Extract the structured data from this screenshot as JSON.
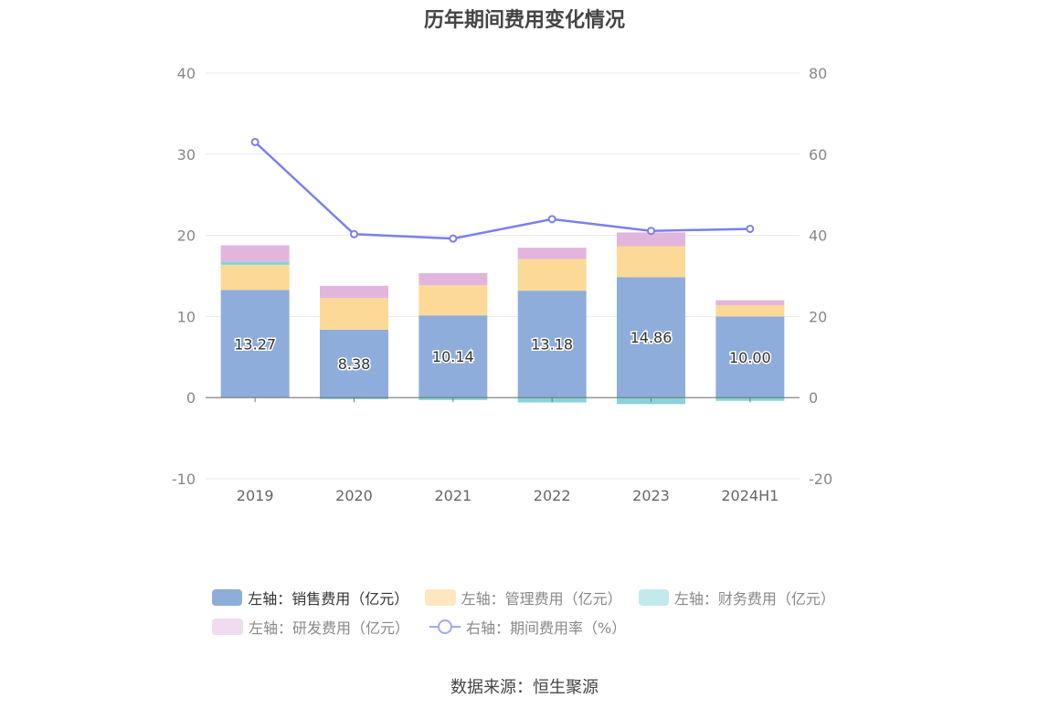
{
  "title": "历年期间费用变化情况",
  "source": "数据来源：恒生聚源",
  "legend": [
    {
      "label": "左轴：销售费用（亿元）",
      "color": "#8eaddb",
      "kind": "bar"
    },
    {
      "label": "左轴：管理费用（亿元）",
      "color": "#fdd998",
      "kind": "bar"
    },
    {
      "label": "左轴：财务费用（亿元）",
      "color": "#86d3da",
      "kind": "bar"
    },
    {
      "label": "左轴：研发费用（亿元）",
      "color": "#e2b6dc",
      "kind": "bar"
    },
    {
      "label": "右轴：期间费用率（%）",
      "color": "#7b7ff0",
      "kind": "line"
    }
  ],
  "chart_data": {
    "type": "bar",
    "title": "历年期间费用变化情况",
    "categories": [
      "2019",
      "2020",
      "2021",
      "2022",
      "2023",
      "2024H1"
    ],
    "left_axis": {
      "ylim": [
        -10,
        40
      ],
      "ticks": [
        -10,
        0,
        10,
        20,
        30,
        40
      ]
    },
    "right_axis": {
      "ylim": [
        -20,
        80
      ],
      "ticks": [
        -20,
        0,
        20,
        40,
        60,
        80
      ]
    },
    "series": [
      {
        "name": "左轴：销售费用（亿元）",
        "axis": "left",
        "stack": true,
        "color": "#8eaddb",
        "values": [
          13.27,
          8.38,
          10.14,
          13.18,
          14.86,
          10.0
        ],
        "labels": [
          "13.27",
          "8.38",
          "10.14",
          "13.18",
          "14.86",
          "10.00"
        ]
      },
      {
        "name": "左轴：管理费用（亿元）",
        "axis": "left",
        "stack": true,
        "color": "#fdd998",
        "values": [
          3.1,
          3.9,
          3.7,
          3.9,
          3.8,
          1.4
        ]
      },
      {
        "name": "左轴：财务费用（亿元）",
        "axis": "left",
        "stack": true,
        "color": "#86d3da",
        "values": [
          0.4,
          -0.2,
          -0.3,
          -0.6,
          -0.8,
          -0.4
        ]
      },
      {
        "name": "左轴：研发费用（亿元）",
        "axis": "left",
        "stack": true,
        "color": "#e2b6dc",
        "values": [
          2.0,
          1.5,
          1.5,
          1.4,
          1.7,
          0.6
        ]
      },
      {
        "name": "右轴：期间费用率（%）",
        "axis": "right",
        "type": "line",
        "color": "#7b7ff0",
        "values": [
          63.0,
          40.3,
          39.2,
          44.0,
          41.1,
          41.6
        ]
      }
    ]
  }
}
